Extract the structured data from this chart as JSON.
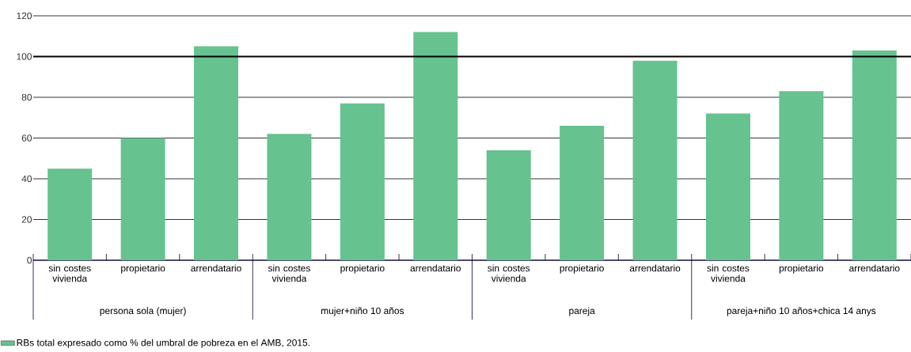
{
  "chart_data": {
    "type": "bar",
    "categories": [
      "sin costes vivienda",
      "propietario",
      "arrendatario",
      "sin costes vivienda",
      "propietario",
      "arrendatario",
      "sin costes vivienda",
      "propietario",
      "arrendatario",
      "sin costes vivienda",
      "propietario",
      "arrendatario"
    ],
    "series": [
      {
        "name": "RBs total expresado como % del umbral de pobreza en el AMB, 2015.",
        "color": "#66c28f",
        "values": [
          45,
          60,
          105,
          62,
          77,
          112,
          54,
          66,
          98,
          72,
          83,
          103
        ]
      }
    ],
    "ylim": [
      0,
      120
    ],
    "yticks": [
      0,
      20,
      40,
      60,
      80,
      100,
      120
    ],
    "grid": "y",
    "legend": "bottom left",
    "ref_lines": [
      {
        "axis": "y",
        "value": 100,
        "color": "#000000"
      }
    ],
    "annotations": [
      "persona sola (mujer)",
      "mujer+niño 10 años",
      "pareja",
      "pareja+niño 10 años+chica 14 anys"
    ]
  }
}
